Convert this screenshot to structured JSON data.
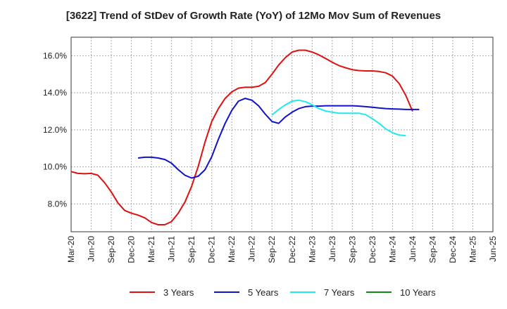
{
  "chart_data": {
    "type": "line",
    "title": "[3622]  Trend of StDev of Growth Rate (YoY) of 12Mo Mov Sum of Revenues",
    "xlabel": "",
    "ylabel": "",
    "ylim": [
      6.5,
      17.0
    ],
    "y_ticks": [
      8.0,
      10.0,
      12.0,
      14.0,
      16.0
    ],
    "y_tick_labels": [
      "8.0%",
      "10.0%",
      "12.0%",
      "14.0%",
      "16.0%"
    ],
    "x_tick_labels": [
      "Mar-20",
      "Jun-20",
      "Sep-20",
      "Dec-20",
      "Mar-21",
      "Jun-21",
      "Sep-21",
      "Dec-21",
      "Mar-22",
      "Jun-22",
      "Sep-22",
      "Dec-22",
      "Mar-23",
      "Jun-23",
      "Sep-23",
      "Dec-23",
      "Mar-24",
      "Jun-24",
      "Sep-24",
      "Dec-24",
      "Mar-25",
      "Jun-25"
    ],
    "grid": true,
    "series": [
      {
        "name": "3 Years",
        "color": "#dd1111",
        "start_index": 0,
        "values": [
          9.75,
          9.65,
          9.63,
          9.65,
          9.55,
          9.15,
          8.65,
          8.05,
          7.65,
          7.5,
          7.4,
          7.25,
          7.0,
          6.88,
          6.88,
          7.05,
          7.5,
          8.1,
          8.95,
          10.05,
          11.35,
          12.45,
          13.15,
          13.7,
          14.05,
          14.25,
          14.3,
          14.3,
          14.35,
          14.55,
          15.0,
          15.5,
          15.9,
          16.2,
          16.3,
          16.3,
          16.2,
          16.05,
          15.85,
          15.65,
          15.47,
          15.35,
          15.25,
          15.2,
          15.18,
          15.18,
          15.15,
          15.08,
          14.9,
          14.5,
          13.85,
          13.0
        ]
      },
      {
        "name": "5 Years",
        "color": "#1111cc",
        "start_index": 10,
        "values": [
          10.48,
          10.52,
          10.52,
          10.48,
          10.4,
          10.2,
          9.85,
          9.55,
          9.4,
          9.5,
          9.85,
          10.55,
          11.5,
          12.35,
          13.05,
          13.55,
          13.7,
          13.6,
          13.3,
          12.85,
          12.45,
          12.35,
          12.7,
          12.95,
          13.15,
          13.25,
          13.28,
          13.28,
          13.3,
          13.3,
          13.3,
          13.3,
          13.3,
          13.28,
          13.25,
          13.22,
          13.18,
          13.15,
          13.13,
          13.12,
          13.1,
          13.1,
          13.1
        ]
      },
      {
        "name": "7 Years",
        "color": "#22e8f0",
        "start_index": 30,
        "values": [
          12.8,
          13.1,
          13.35,
          13.55,
          13.6,
          13.52,
          13.35,
          13.15,
          13.02,
          12.95,
          12.9,
          12.9,
          12.9,
          12.9,
          12.82,
          12.6,
          12.35,
          12.05,
          11.85,
          11.72,
          11.68
        ]
      },
      {
        "name": "10 Years",
        "color": "#118811",
        "start_index": 0,
        "values": []
      }
    ]
  }
}
